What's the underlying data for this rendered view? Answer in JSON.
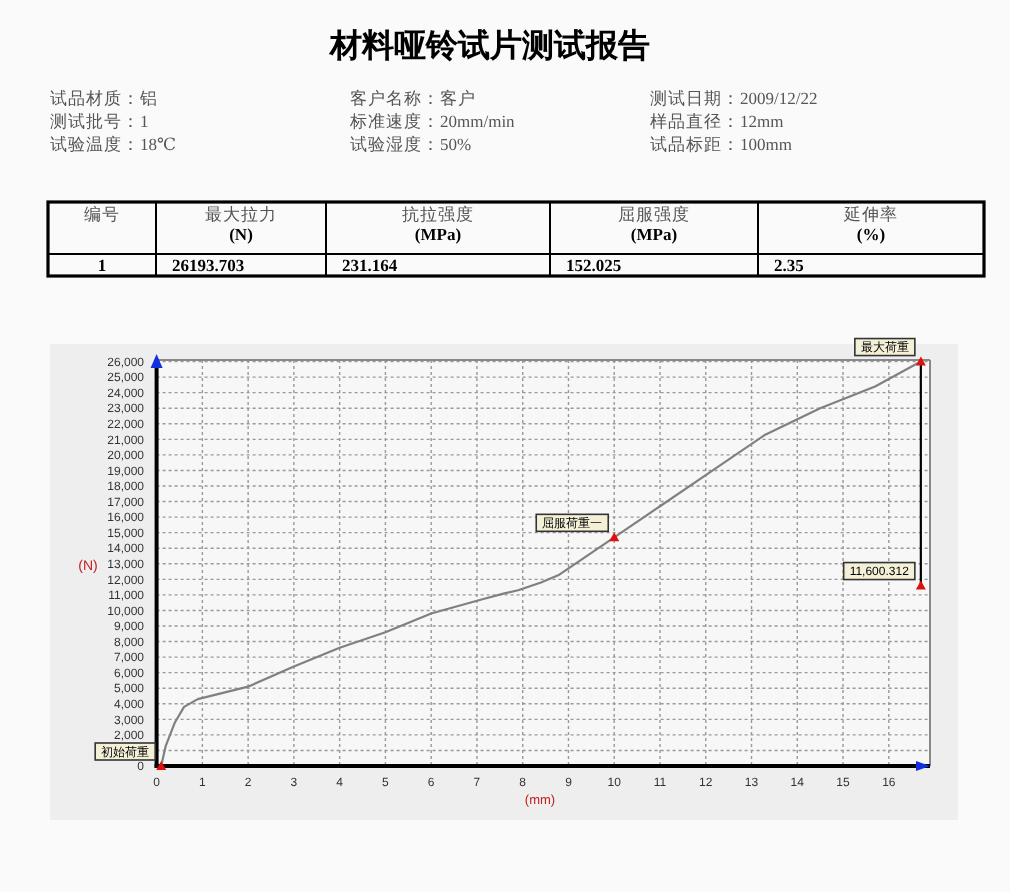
{
  "chart_data": [
    {
      "type": "other",
      "title": "材料哑铃试片测试报告",
      "annotations": [
        "试品材质：铝",
        "客户名称：客户",
        "测试日期：2009/12/22",
        "测试批号：1",
        "标准速度：20mm/min",
        "样品直径：12mm",
        "试验温度：18℃",
        "试验湿度：50%",
        "试品标距：100mm"
      ],
      "categories": [
        "编号",
        "最大拉力\n(N)",
        "抗拉强度\n(MPa)",
        "屈服强度\n(MPa)",
        "延伸率\n(%)"
      ],
      "values": [
        1,
        26193.703,
        231.164,
        152.025,
        2.35
      ],
      "data_labels": true
    },
    {
      "type": "line",
      "xlabel": "(mm)",
      "ylabel": "(N)",
      "xlim": [
        0,
        16.9
      ],
      "ylim": [
        0,
        26100
      ],
      "grid": true,
      "xticks": [
        0,
        1,
        2,
        3,
        4,
        5,
        6,
        7,
        8,
        9,
        10,
        11,
        12,
        13,
        14,
        15,
        16
      ],
      "yticks": [
        0,
        {
          "value": 1000,
          "label": null
        },
        {
          "value": 2000,
          "label": "2,000"
        },
        {
          "value": 3000,
          "label": "3,000"
        },
        {
          "value": 4000,
          "label": "4,000"
        },
        {
          "value": 5000,
          "label": "5,000"
        },
        {
          "value": 6000,
          "label": "6,000"
        },
        {
          "value": 7000,
          "label": "7,000"
        },
        {
          "value": 8000,
          "label": "8,000"
        },
        {
          "value": 9000,
          "label": "9,000"
        },
        {
          "value": 10000,
          "label": "10,000"
        },
        {
          "value": 11000,
          "label": "11,000"
        },
        {
          "value": 12000,
          "label": "12,000"
        },
        {
          "value": 13000,
          "label": "13,000"
        },
        {
          "value": 14000,
          "label": "14,000"
        },
        {
          "value": 15000,
          "label": "15,000"
        },
        {
          "value": 16000,
          "label": "16,000"
        },
        {
          "value": 17000,
          "label": "17,000"
        },
        {
          "value": 18000,
          "label": "18,000"
        },
        {
          "value": 19000,
          "label": "19,000"
        },
        {
          "value": 20000,
          "label": "20,000"
        },
        {
          "value": 21000,
          "label": "21,000"
        },
        {
          "value": 22000,
          "label": "22,000"
        },
        {
          "value": 23000,
          "label": "23,000"
        },
        {
          "value": 24000,
          "label": "24,000"
        },
        {
          "value": 25000,
          "label": "25,000"
        },
        {
          "value": 26000,
          "label": "26,000"
        }
      ],
      "series": [
        {
          "color": "#808080",
          "x": [
            0.1,
            0.2,
            0.4,
            0.6,
            0.9,
            2.0,
            3.0,
            4.0,
            5.0,
            6.0,
            7.1,
            7.6,
            7.9,
            8.4,
            8.8,
            10.0,
            11.0,
            12.2,
            13.3,
            14.5,
            15.7,
            16.7
          ],
          "values": [
            0,
            1300,
            2800,
            3800,
            4300,
            5100,
            6400,
            7600,
            8600,
            9800,
            10700,
            11100,
            11300,
            11800,
            12300,
            14700,
            16700,
            19100,
            21300,
            23000,
            24400,
            26000
          ]
        },
        {
          "color": "#000000",
          "x": [
            16.7,
            16.7
          ],
          "values": [
            26000,
            11600
          ]
        }
      ],
      "annotations": [
        {
          "text": "初始荷重",
          "x": 0.1,
          "y": 0
        },
        {
          "text": "屈服荷重一",
          "x": 10.0,
          "y": 14700
        },
        {
          "text": "最大荷重",
          "x": 16.7,
          "y": 26000
        },
        {
          "text": "11,600.312",
          "x": 16.7,
          "y": 11600
        }
      ]
    }
  ]
}
